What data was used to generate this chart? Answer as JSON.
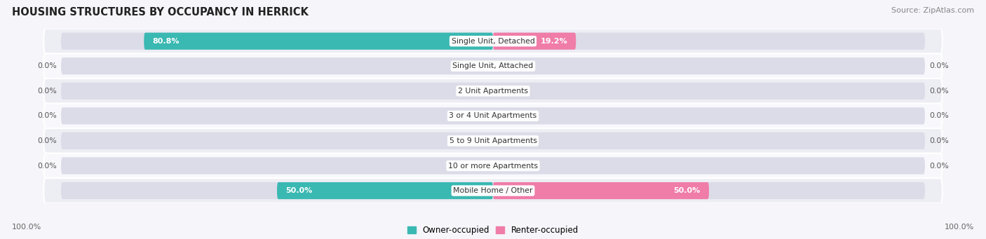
{
  "title": "HOUSING STRUCTURES BY OCCUPANCY IN HERRICK",
  "source": "Source: ZipAtlas.com",
  "categories": [
    "Single Unit, Detached",
    "Single Unit, Attached",
    "2 Unit Apartments",
    "3 or 4 Unit Apartments",
    "5 to 9 Unit Apartments",
    "10 or more Apartments",
    "Mobile Home / Other"
  ],
  "owner_values": [
    80.8,
    0.0,
    0.0,
    0.0,
    0.0,
    0.0,
    50.0
  ],
  "renter_values": [
    19.2,
    0.0,
    0.0,
    0.0,
    0.0,
    0.0,
    50.0
  ],
  "owner_color": "#3ab8b2",
  "renter_color": "#f07ca8",
  "bar_bg_color": "#dcdce8",
  "row_bg_even": "#ededf4",
  "row_bg_odd": "#f8f8fc",
  "axis_label_left": "100.0%",
  "axis_label_right": "100.0%",
  "legend_owner": "Owner-occupied",
  "legend_renter": "Renter-occupied",
  "figwidth": 14.06,
  "figheight": 3.41,
  "dpi": 100,
  "max_val": 100.0
}
